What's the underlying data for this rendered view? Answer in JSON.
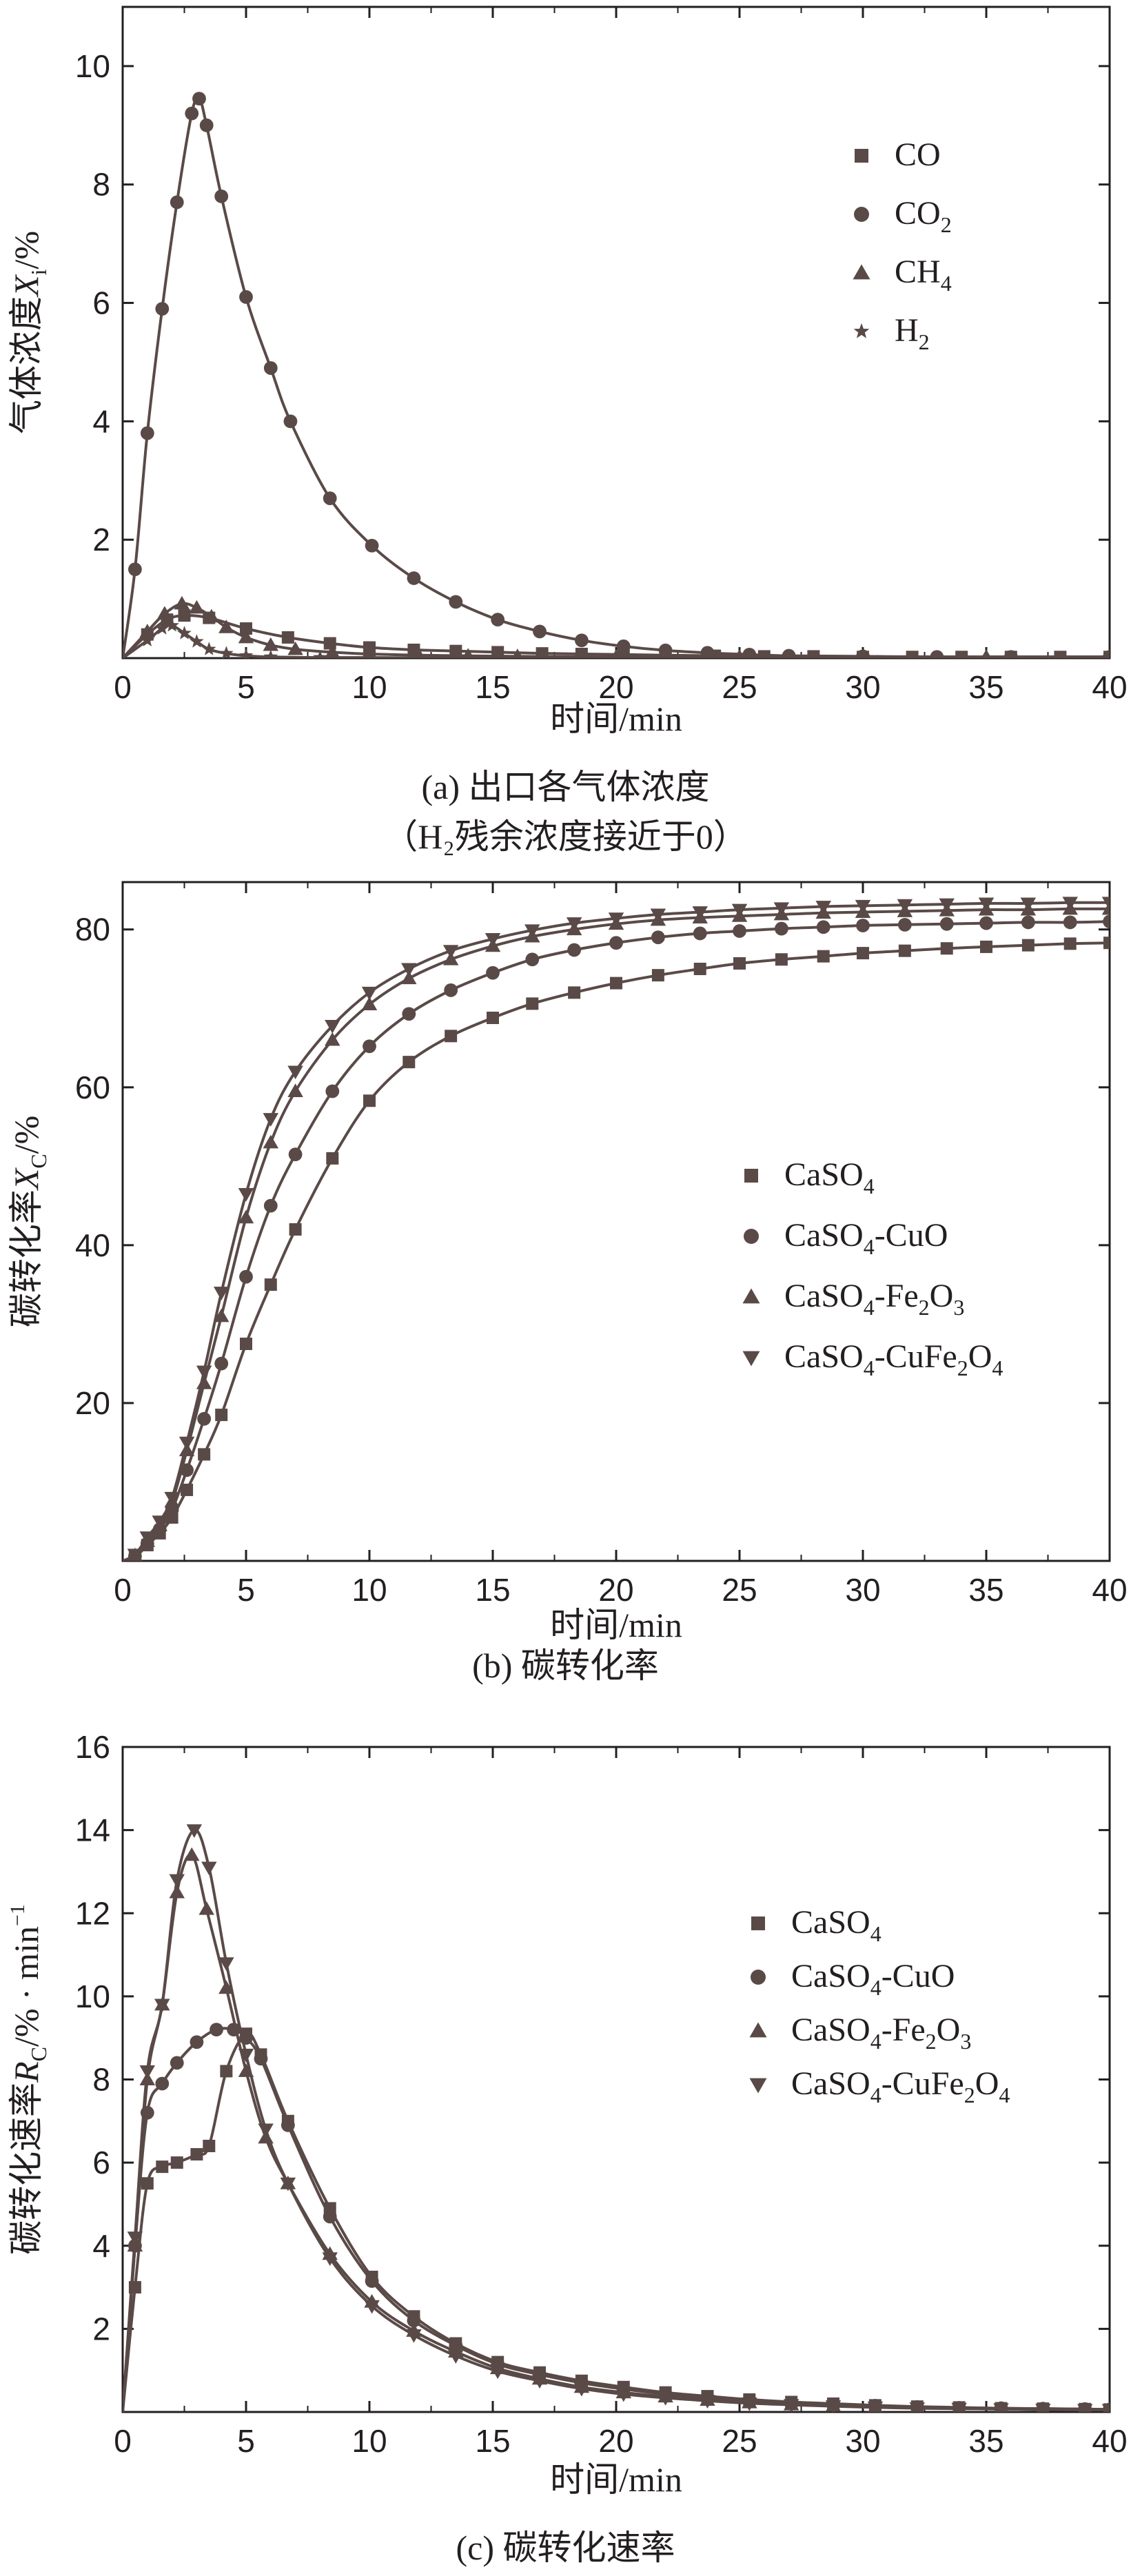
{
  "panels": [
    {
      "caption": "(a) 出口各气体浓度",
      "caption2": "（H₂残余浓度接近于0）"
    },
    {
      "caption": "(b) 碳转化率",
      "caption2": ""
    },
    {
      "caption": "(c) 碳转化速率",
      "caption2": ""
    }
  ],
  "chart_data": [
    {
      "type": "line",
      "xlabel": "时间/min",
      "ylabel_parts": [
        "气体浓度",
        "X",
        "i",
        "/%"
      ],
      "xlim": [
        0,
        40
      ],
      "ylim": [
        0,
        11
      ],
      "xticks": [
        0,
        5,
        10,
        15,
        20,
        25,
        30,
        35,
        40
      ],
      "yticks": [
        2,
        4,
        6,
        8,
        10
      ],
      "legend_position": "top-right",
      "color": "#5a4a47",
      "series": [
        {
          "name": "CO",
          "name_sub": "",
          "marker": "square",
          "x": [
            0,
            1,
            1.8,
            2.5,
            3.5,
            5,
            6.7,
            8.4,
            10,
            11.8,
            13.5,
            15.2,
            17,
            18.6,
            20.3,
            22,
            24,
            26,
            28,
            30,
            32,
            34,
            36,
            38,
            40
          ],
          "y": [
            0,
            0.4,
            0.65,
            0.72,
            0.68,
            0.5,
            0.35,
            0.25,
            0.18,
            0.14,
            0.12,
            0.1,
            0.08,
            0.07,
            0.06,
            0.05,
            0.04,
            0.03,
            0.03,
            0.02,
            0.02,
            0.02,
            0.02,
            0.02,
            0.02
          ]
        },
        {
          "name": "CO",
          "name_sub": "2",
          "marker": "circle",
          "x": [
            0,
            0.5,
            1,
            1.6,
            2.2,
            2.8,
            3.1,
            3.4,
            4.0,
            5.0,
            6.0,
            6.8,
            8.4,
            10.1,
            11.8,
            13.5,
            15.2,
            16.9,
            18.6,
            20.3,
            22,
            23.7,
            25.4,
            27,
            30,
            33,
            36,
            40
          ],
          "y": [
            0,
            1.5,
            3.8,
            5.9,
            7.7,
            9.2,
            9.45,
            9.0,
            7.8,
            6.1,
            4.9,
            4.0,
            2.7,
            1.9,
            1.35,
            0.95,
            0.65,
            0.45,
            0.3,
            0.2,
            0.13,
            0.09,
            0.06,
            0.04,
            0.03,
            0.02,
            0.02,
            0.02
          ]
        },
        {
          "name": "CH",
          "name_sub": "4",
          "marker": "triangle-up",
          "x": [
            0,
            1,
            1.7,
            2.4,
            3,
            3.6,
            4.2,
            5,
            6,
            7,
            8.5,
            10,
            12,
            14,
            16,
            20,
            25,
            30,
            35,
            40
          ],
          "y": [
            0,
            0.45,
            0.75,
            0.92,
            0.85,
            0.7,
            0.52,
            0.35,
            0.22,
            0.15,
            0.1,
            0.07,
            0.05,
            0.04,
            0.03,
            0.02,
            0.02,
            0.02,
            0.02,
            0.02
          ]
        },
        {
          "name": "H",
          "name_sub": "2",
          "marker": "star",
          "x": [
            0,
            1,
            1.6,
            2,
            2.5,
            3,
            3.5,
            4.2,
            5,
            6,
            8,
            10,
            15,
            20,
            25,
            30,
            35,
            40
          ],
          "y": [
            0,
            0.3,
            0.5,
            0.55,
            0.42,
            0.28,
            0.15,
            0.08,
            0.04,
            0.02,
            0.01,
            0.01,
            0,
            0,
            0,
            0,
            0,
            0
          ]
        }
      ]
    },
    {
      "type": "line",
      "xlabel": "时间/min",
      "ylabel_parts": [
        "碳转化率",
        "X",
        "C",
        "/%"
      ],
      "xlim": [
        0,
        40
      ],
      "ylim": [
        0,
        86
      ],
      "xticks": [
        0,
        5,
        10,
        15,
        20,
        25,
        30,
        35,
        40
      ],
      "yticks": [
        20,
        40,
        60,
        80
      ],
      "legend_position": "center-right",
      "color": "#5a4a47",
      "series": [
        {
          "name": "CaSO4",
          "marker": "square",
          "x": [
            0,
            0.5,
            1,
            1.5,
            2,
            2.6,
            3.3,
            4,
            5,
            6,
            7,
            8.5,
            10,
            11.6,
            13.3,
            15,
            16.6,
            18.3,
            20,
            21.7,
            23.4,
            25,
            26.7,
            28.4,
            30,
            31.7,
            33.4,
            35,
            36.7,
            38.4,
            40
          ],
          "y": [
            0,
            0.5,
            2,
            3.5,
            5.5,
            9,
            13.5,
            18.5,
            27.5,
            35,
            42,
            51,
            58.3,
            63.2,
            66.5,
            68.8,
            70.6,
            72,
            73.2,
            74.2,
            75,
            75.7,
            76.2,
            76.6,
            77,
            77.3,
            77.6,
            77.8,
            78,
            78.2,
            78.3
          ]
        },
        {
          "name": "CaSO4-CuO",
          "marker": "circle",
          "x": [
            0,
            0.5,
            1,
            1.5,
            2,
            2.6,
            3.3,
            4,
            5,
            6,
            7,
            8.5,
            10,
            11.6,
            13.3,
            15,
            16.6,
            18.3,
            20,
            21.7,
            23.4,
            25,
            26.7,
            28.4,
            30,
            31.7,
            33.4,
            35,
            36.7,
            38.4,
            40
          ],
          "y": [
            0,
            0.6,
            2.2,
            4,
            6.5,
            11.5,
            18,
            25,
            36,
            45,
            51.5,
            59.5,
            65.2,
            69.3,
            72.3,
            74.5,
            76.2,
            77.4,
            78.3,
            79,
            79.5,
            79.8,
            80.1,
            80.3,
            80.5,
            80.6,
            80.7,
            80.8,
            80.9,
            80.9,
            81
          ]
        },
        {
          "name": "CaSO4-Fe2O3",
          "marker": "triangle-up",
          "x": [
            0,
            0.5,
            1,
            1.5,
            2,
            2.6,
            3.3,
            4,
            5,
            6,
            7,
            8.5,
            10,
            11.6,
            13.3,
            15,
            16.6,
            18.3,
            20,
            21.7,
            23.4,
            25,
            26.7,
            28.4,
            30,
            31.7,
            33.4,
            35,
            36.7,
            38.4,
            40
          ],
          "y": [
            0,
            0.7,
            2.5,
            4.5,
            7.5,
            14,
            22.5,
            31,
            43.5,
            53,
            59.5,
            66,
            70.5,
            73.8,
            76.2,
            77.9,
            79.1,
            80,
            80.7,
            81.2,
            81.5,
            81.7,
            81.9,
            82.1,
            82.2,
            82.3,
            82.4,
            82.5,
            82.5,
            82.6,
            82.6
          ]
        },
        {
          "name": "CaSO4-CuFe2O4",
          "marker": "triangle-down",
          "x": [
            0,
            0.5,
            1,
            1.5,
            2,
            2.6,
            3.3,
            4,
            5,
            6,
            7,
            8.5,
            10,
            11.6,
            13.3,
            15,
            16.6,
            18.3,
            20,
            21.7,
            23.4,
            25,
            26.7,
            28.4,
            30,
            31.7,
            33.4,
            35,
            36.7,
            38.4,
            40
          ],
          "y": [
            0,
            0.8,
            3,
            5,
            8,
            15,
            24,
            34,
            46.5,
            56,
            62,
            67.8,
            72,
            75,
            77.3,
            78.8,
            79.9,
            80.8,
            81.4,
            81.9,
            82.2,
            82.5,
            82.7,
            82.9,
            83,
            83.1,
            83.2,
            83.3,
            83.3,
            83.4,
            83.4
          ]
        }
      ]
    },
    {
      "type": "line",
      "xlabel": "时间/min",
      "ylabel_parts": [
        "碳转化速率",
        "R",
        "C",
        "/% · min",
        "−1"
      ],
      "xlim": [
        0,
        40
      ],
      "ylim": [
        0,
        16
      ],
      "xticks": [
        0,
        5,
        10,
        15,
        20,
        25,
        30,
        35,
        40
      ],
      "yticks": [
        2,
        4,
        6,
        8,
        10,
        12,
        14,
        16
      ],
      "legend_position": "center-right",
      "color": "#5a4a47",
      "series": [
        {
          "name": "CaSO4",
          "marker": "square",
          "x": [
            0,
            0.5,
            1,
            1.6,
            2.2,
            3.0,
            3.5,
            4.2,
            5.0,
            5.6,
            6.7,
            8.4,
            10.1,
            11.8,
            13.5,
            15.2,
            16.9,
            18.6,
            20.3,
            22,
            23.7,
            25.4,
            27.1,
            28.8,
            30.5,
            32.2,
            33.9,
            35.6,
            37.3,
            39,
            40
          ],
          "y": [
            0,
            3,
            5.5,
            5.9,
            6.0,
            6.2,
            6.4,
            8.2,
            9.1,
            8.6,
            7.0,
            4.9,
            3.25,
            2.3,
            1.65,
            1.2,
            0.95,
            0.75,
            0.6,
            0.47,
            0.38,
            0.3,
            0.24,
            0.2,
            0.16,
            0.13,
            0.11,
            0.09,
            0.08,
            0.07,
            0.06
          ]
        },
        {
          "name": "CaSO4-CuO",
          "marker": "circle",
          "x": [
            0,
            0.5,
            1,
            1.6,
            2.2,
            3.0,
            3.8,
            4.5,
            5.0,
            5.6,
            6.7,
            8.4,
            10.1,
            11.8,
            13.5,
            15.2,
            16.9,
            18.6,
            20.3,
            22,
            23.7,
            25.4,
            27.1,
            28.8,
            30.5,
            32.2,
            33.9,
            35.6,
            37.3,
            39,
            40
          ],
          "y": [
            0,
            4,
            7.2,
            7.9,
            8.4,
            8.9,
            9.2,
            9.2,
            9.0,
            8.5,
            6.9,
            4.7,
            3.15,
            2.2,
            1.6,
            1.15,
            0.9,
            0.7,
            0.55,
            0.43,
            0.34,
            0.27,
            0.22,
            0.18,
            0.15,
            0.12,
            0.1,
            0.09,
            0.08,
            0.07,
            0.06
          ]
        },
        {
          "name": "CaSO4-Fe2O3",
          "marker": "triangle-up",
          "x": [
            0,
            0.5,
            1,
            1.6,
            2.2,
            2.8,
            3.4,
            4.2,
            5.0,
            5.8,
            6.7,
            8.4,
            10.1,
            11.8,
            13.5,
            15.2,
            16.9,
            18.6,
            20.3,
            22,
            23.7,
            25.4,
            27.1,
            28.8,
            30.5,
            32.2,
            33.9,
            35.6,
            37.3,
            39,
            40
          ],
          "y": [
            0,
            4,
            8,
            9.8,
            12.5,
            13.4,
            12.1,
            10.2,
            8.2,
            6.6,
            5.5,
            3.8,
            2.65,
            1.95,
            1.45,
            1.05,
            0.8,
            0.6,
            0.47,
            0.37,
            0.29,
            0.23,
            0.18,
            0.15,
            0.12,
            0.1,
            0.08,
            0.07,
            0.06,
            0.05,
            0.05
          ]
        },
        {
          "name": "CaSO4-CuFe2O4",
          "marker": "triangle-down",
          "x": [
            0,
            0.5,
            1,
            1.6,
            2.2,
            2.9,
            3.5,
            4.2,
            5.0,
            5.8,
            6.7,
            8.4,
            10.1,
            11.8,
            13.5,
            15.2,
            16.9,
            18.6,
            20.3,
            22,
            23.7,
            25.4,
            27.1,
            28.8,
            30.5,
            32.2,
            33.9,
            35.6,
            37.3,
            39,
            40
          ],
          "y": [
            0,
            4.2,
            8.2,
            9.8,
            12.8,
            14.0,
            13.1,
            10.8,
            8.6,
            6.8,
            5.5,
            3.7,
            2.55,
            1.85,
            1.35,
            0.98,
            0.75,
            0.56,
            0.43,
            0.34,
            0.27,
            0.21,
            0.17,
            0.14,
            0.11,
            0.09,
            0.08,
            0.07,
            0.06,
            0.05,
            0.05
          ]
        }
      ]
    }
  ]
}
